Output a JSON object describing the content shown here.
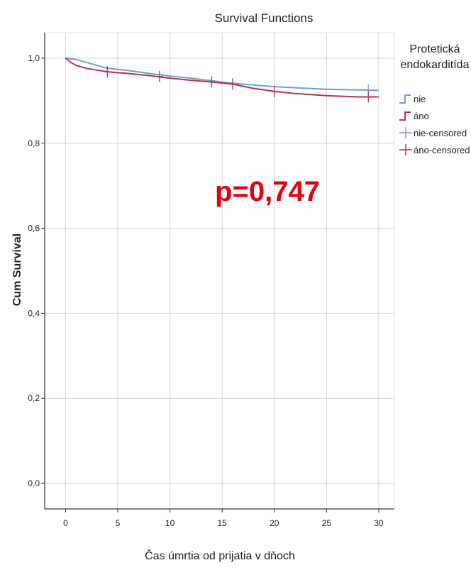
{
  "chart_data": {
    "type": "line",
    "title": "Survival Functions",
    "xlabel": "Čas úmrtia od prijatia v dňoch",
    "ylabel": "Cum Survival",
    "xlim": [
      -2,
      31.5
    ],
    "ylim": [
      -0.06,
      1.06
    ],
    "x_ticks": [
      0,
      5,
      10,
      15,
      20,
      25,
      30
    ],
    "x_tick_labels": [
      "0",
      "5",
      "10",
      "15",
      "20",
      "25",
      "30"
    ],
    "y_ticks": [
      0.0,
      0.2,
      0.4,
      0.6,
      0.8,
      1.0
    ],
    "y_tick_labels": [
      "0,0",
      "0,2",
      "0,4",
      "0,6",
      "0,8",
      "1,0"
    ],
    "grid": true,
    "legend": {
      "title_lines": [
        "Protetická",
        "endokarditída"
      ],
      "placement": "right",
      "entries": [
        {
          "label": "nie",
          "kind": "step",
          "series": 0
        },
        {
          "label": "áno",
          "kind": "step",
          "series": 1
        },
        {
          "label": "nie-censored",
          "kind": "censor",
          "series": 0
        },
        {
          "label": "áno-censored",
          "kind": "censor",
          "series": 1
        }
      ]
    },
    "annotation": {
      "text": "p=0,747",
      "color": "#e3000f"
    },
    "series": [
      {
        "name": "nie",
        "color": "#6aa3c9",
        "points": [
          [
            0,
            1.0
          ],
          [
            1,
            0.997
          ],
          [
            2,
            0.99
          ],
          [
            3,
            0.983
          ],
          [
            4,
            0.976
          ],
          [
            6,
            0.971
          ],
          [
            8,
            0.964
          ],
          [
            10,
            0.958
          ],
          [
            12,
            0.953
          ],
          [
            14,
            0.947
          ],
          [
            16,
            0.941
          ],
          [
            18,
            0.937
          ],
          [
            20,
            0.933
          ],
          [
            25,
            0.927
          ],
          [
            29,
            0.925
          ],
          [
            30,
            0.924
          ]
        ],
        "censored": [
          [
            29,
            0.925
          ]
        ]
      },
      {
        "name": "áno",
        "color": "#b5334f",
        "points": [
          [
            0,
            1.0
          ],
          [
            0.5,
            0.99
          ],
          [
            1,
            0.983
          ],
          [
            2,
            0.976
          ],
          [
            3,
            0.972
          ],
          [
            4,
            0.968
          ],
          [
            6,
            0.964
          ],
          [
            8,
            0.959
          ],
          [
            10,
            0.953
          ],
          [
            12,
            0.948
          ],
          [
            14,
            0.944
          ],
          [
            16,
            0.939
          ],
          [
            18,
            0.929
          ],
          [
            20,
            0.922
          ],
          [
            22,
            0.917
          ],
          [
            25,
            0.912
          ],
          [
            28,
            0.909
          ],
          [
            30,
            0.909
          ]
        ],
        "censored": [
          [
            4,
            0.968
          ],
          [
            9,
            0.957
          ],
          [
            14,
            0.944
          ],
          [
            16,
            0.939
          ],
          [
            20,
            0.922
          ],
          [
            29,
            0.909
          ]
        ]
      }
    ]
  }
}
